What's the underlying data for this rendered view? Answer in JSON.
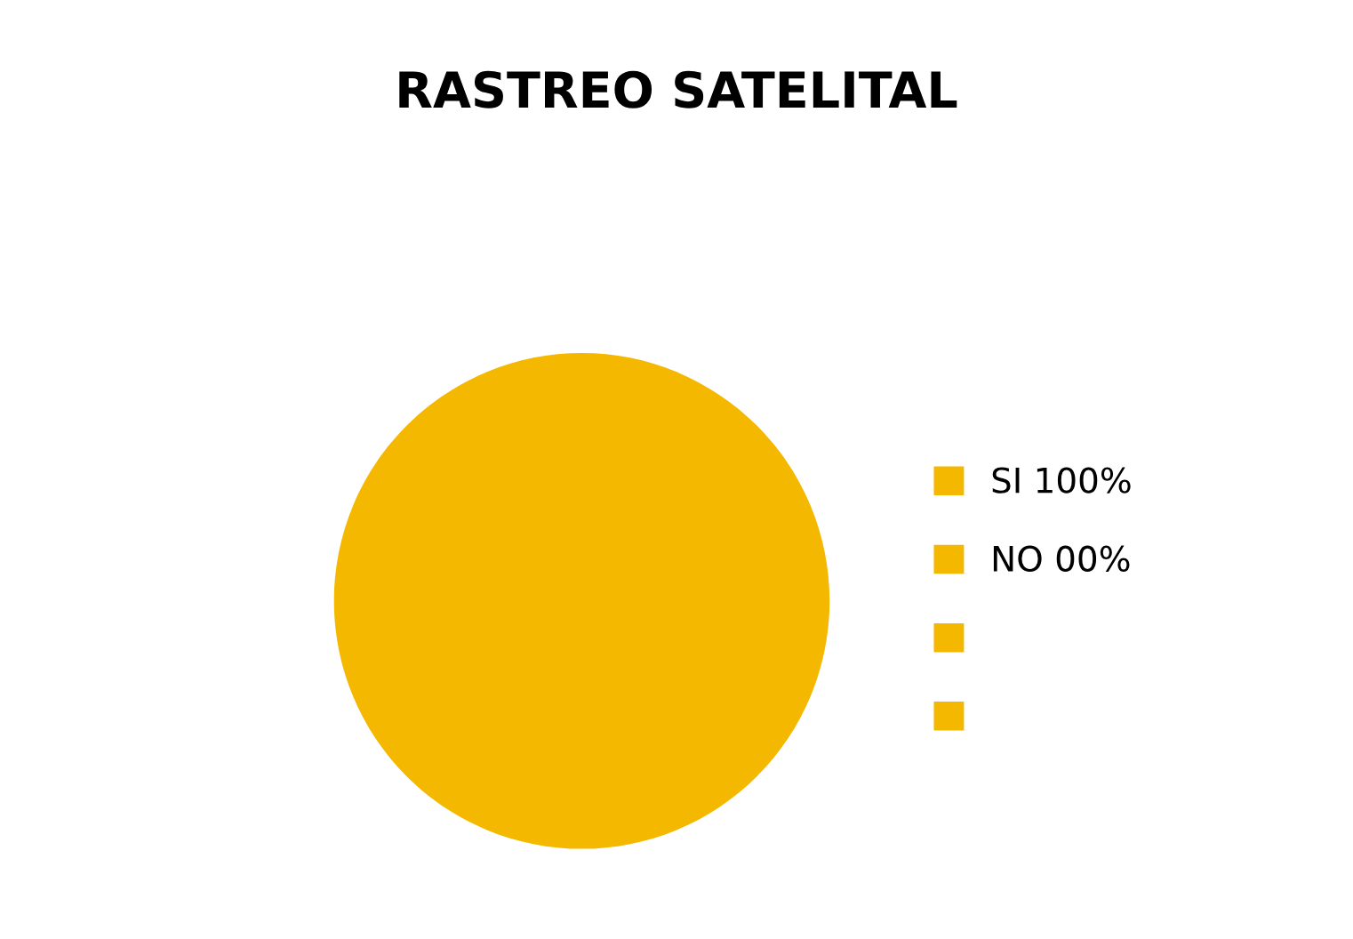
{
  "chart_data": {
    "type": "pie",
    "title": "RASTREO SATELITAL",
    "categories": [
      "SI 100%",
      "NO 00%",
      null,
      null
    ],
    "values": [
      100,
      0,
      0,
      0
    ],
    "colors": [
      "#f5b800",
      "#f5b800",
      "#f5b800",
      "#f5b800"
    ],
    "legend": "right"
  }
}
